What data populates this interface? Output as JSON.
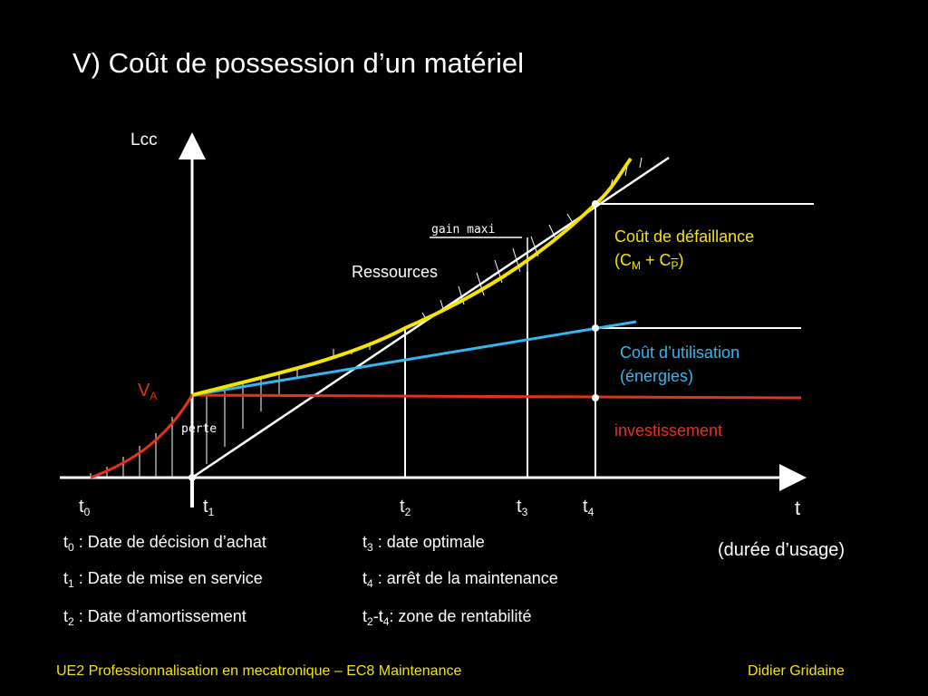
{
  "slide": {
    "title": "V) Coût de possession d’un matériel"
  },
  "axes": {
    "y_label": "Lcc",
    "x_label": "t",
    "x_sublabel": "(durée d’usage)"
  },
  "time_marks": [
    {
      "name": "t",
      "sub": "0"
    },
    {
      "name": "t",
      "sub": "1"
    },
    {
      "name": "t",
      "sub": "2"
    },
    {
      "name": "t",
      "sub": "3"
    },
    {
      "name": "t",
      "sub": "4"
    }
  ],
  "annotations": {
    "va_main": "V",
    "va_sub": "A",
    "ressources": "Ressources",
    "gain_maxi": "gain maxi",
    "perte": "perte"
  },
  "legend": {
    "defaillance_line1": "Coût de défaillance",
    "defaillance_line2_open": "(C",
    "defaillance_sub_m": "M",
    "defaillance_plus": " + C",
    "defaillance_sub_p": "P",
    "defaillance_close": ")",
    "utilisation_line1": "Coût d’utilisation",
    "utilisation_line2": "(énergies)",
    "investissement": "investissement"
  },
  "definitions_left": [
    {
      "t": "t",
      "sub": "0",
      "text": " : Date de décision d’achat"
    },
    {
      "t": "t",
      "sub": "1",
      "text": " : Date de mise en service"
    },
    {
      "t": "t",
      "sub": "2",
      "text": " : Date d’amortissement"
    }
  ],
  "definitions_right": [
    {
      "t": "t",
      "sub": "3",
      "text": " : date optimale"
    },
    {
      "t": "t",
      "sub": "4",
      "text": " : arrêt de la maintenance"
    },
    {
      "t": "t",
      "sub": "2",
      "t2": "-t",
      "sub2": "4",
      "text": ": zone de rentabilité"
    }
  ],
  "footer": {
    "left": "UE2 Professionnalisation en mecatronique – EC8 Maintenance",
    "right": "Didier Gridaine"
  },
  "colors": {
    "investissement": "#e8301c",
    "utilisation": "#35b6f0",
    "defaillance": "#f5e400",
    "axes": "#ffffff",
    "footer": "#f5e400"
  }
}
